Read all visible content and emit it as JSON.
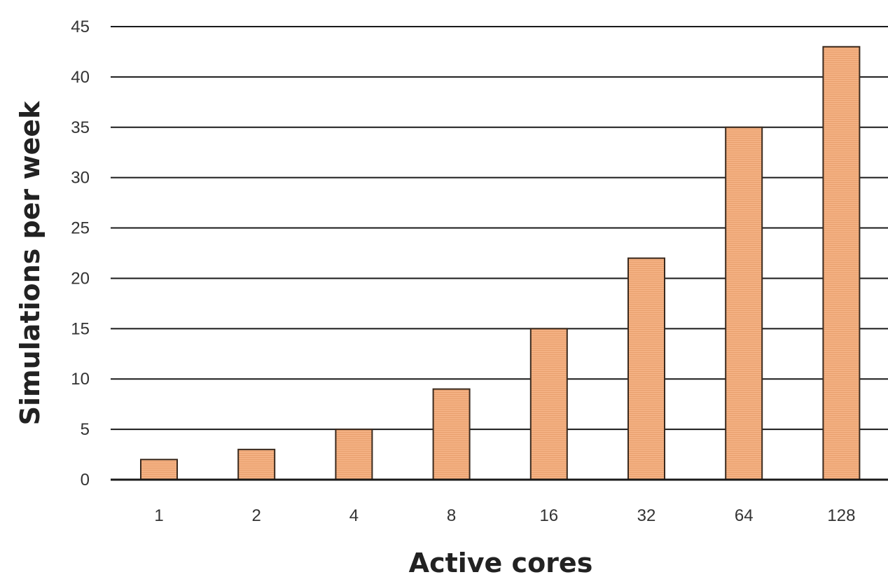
{
  "chart_data": {
    "type": "bar",
    "categories": [
      "1",
      "2",
      "4",
      "8",
      "16",
      "32",
      "64",
      "128"
    ],
    "values": [
      2,
      3,
      5,
      9,
      15,
      22,
      35,
      43
    ],
    "title": "",
    "xlabel": "Active cores",
    "ylabel": "Simulations per week",
    "ylim": [
      0,
      45
    ],
    "yticks": [
      "0",
      "5",
      "10",
      "15",
      "20",
      "25",
      "30",
      "35",
      "40",
      "45"
    ],
    "grid": true,
    "legend": "none",
    "colors": {
      "bar_fill": "#f4b183",
      "bar_stripe": "#e8a06e",
      "bar_stroke": "#3a2a1e",
      "gridline": "#1a1a1a",
      "axis": "#1a1a1a"
    }
  }
}
